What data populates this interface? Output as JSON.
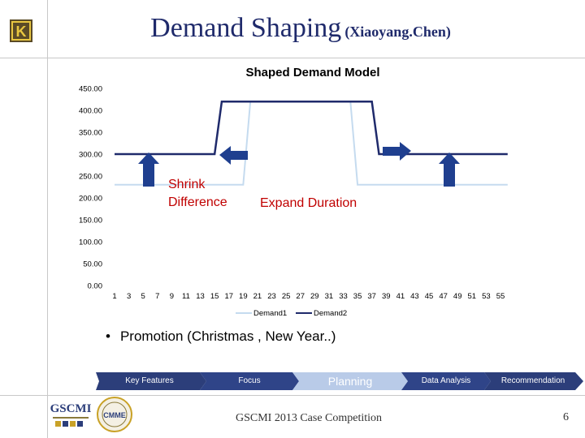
{
  "slide": {
    "title_main": "Demand Shaping",
    "title_sub": "(Xiaoyang.Chen)",
    "bullet": "Promotion (Christmas , New Year..)",
    "footer": "GSCMI 2013 Case Competition",
    "page_number": "6"
  },
  "nav": {
    "steps": [
      "Key Features",
      "Focus",
      "Planning",
      "Data Analysis",
      "Recommendation"
    ],
    "active": "Planning"
  },
  "logos": {
    "corner": "K",
    "gscmi": "GSCMI",
    "cmme": "CMME"
  },
  "colors": {
    "title": "#1f2a6b",
    "demand1": "#c5dbef",
    "demand2": "#1f2a6b",
    "arrow": "#1f3f8f",
    "annotation": "#c00000",
    "nav_dark": "#2c3e7a",
    "nav_active": "#b9cbe8"
  },
  "chart_data": {
    "type": "line",
    "title": "Shaped Demand Model",
    "xlabel": "",
    "ylabel": "",
    "ylim": [
      0,
      450
    ],
    "y_ticks": [
      "0.00",
      "50.00",
      "100.00",
      "150.00",
      "200.00",
      "250.00",
      "300.00",
      "350.00",
      "400.00",
      "450.00"
    ],
    "x_ticks": [
      "1",
      "3",
      "5",
      "7",
      "9",
      "11",
      "13",
      "15",
      "17",
      "19",
      "21",
      "23",
      "25",
      "27",
      "29",
      "31",
      "33",
      "35",
      "37",
      "39",
      "41",
      "43",
      "45",
      "47",
      "49",
      "51",
      "53",
      "55"
    ],
    "grid": false,
    "legend_position": "bottom",
    "series": [
      {
        "name": "Demand1",
        "points": [
          [
            1,
            230
          ],
          [
            19,
            230
          ],
          [
            20,
            420
          ],
          [
            34,
            420
          ],
          [
            35,
            230
          ],
          [
            56,
            230
          ]
        ]
      },
      {
        "name": "Demand2",
        "points": [
          [
            1,
            300
          ],
          [
            15,
            300
          ],
          [
            16,
            420
          ],
          [
            37,
            420
          ],
          [
            38,
            300
          ],
          [
            56,
            300
          ]
        ]
      }
    ],
    "annotations": [
      "Shrink",
      "Difference",
      "Expand Duration"
    ]
  }
}
